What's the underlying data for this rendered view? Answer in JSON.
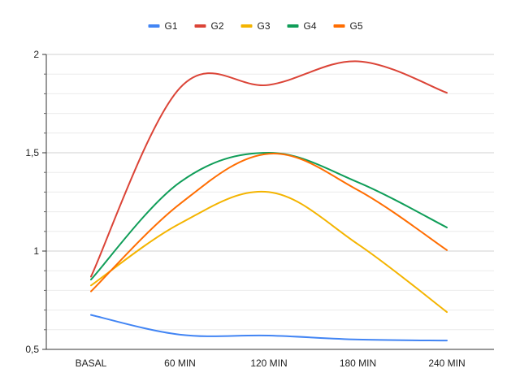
{
  "chart_data": {
    "type": "line",
    "title": "",
    "xlabel": "",
    "ylabel": "",
    "categories": [
      "BASAL",
      "60 MIN",
      "120 MIN",
      "180 MIN",
      "240 MIN"
    ],
    "ylim": [
      0.5,
      2
    ],
    "yticks": [
      0.5,
      1,
      1.5,
      2
    ],
    "ytick_labels": [
      "0,5",
      "1",
      "1,5",
      "2"
    ],
    "grid": true,
    "smooth": true,
    "legend_position": "top",
    "series": [
      {
        "name": "G1",
        "color": "#4285f4",
        "values": [
          0.675,
          0.575,
          0.57,
          0.55,
          0.545
        ]
      },
      {
        "name": "G2",
        "color": "#db4437",
        "values": [
          0.87,
          1.83,
          1.845,
          1.965,
          1.805
        ]
      },
      {
        "name": "G3",
        "color": "#f4b400",
        "values": [
          0.825,
          1.14,
          1.3,
          1.035,
          0.69
        ]
      },
      {
        "name": "G4",
        "color": "#0f9d58",
        "values": [
          0.855,
          1.35,
          1.5,
          1.35,
          1.12
        ]
      },
      {
        "name": "G5",
        "color": "#ff6d01",
        "values": [
          0.795,
          1.24,
          1.495,
          1.31,
          1.005
        ]
      }
    ]
  }
}
